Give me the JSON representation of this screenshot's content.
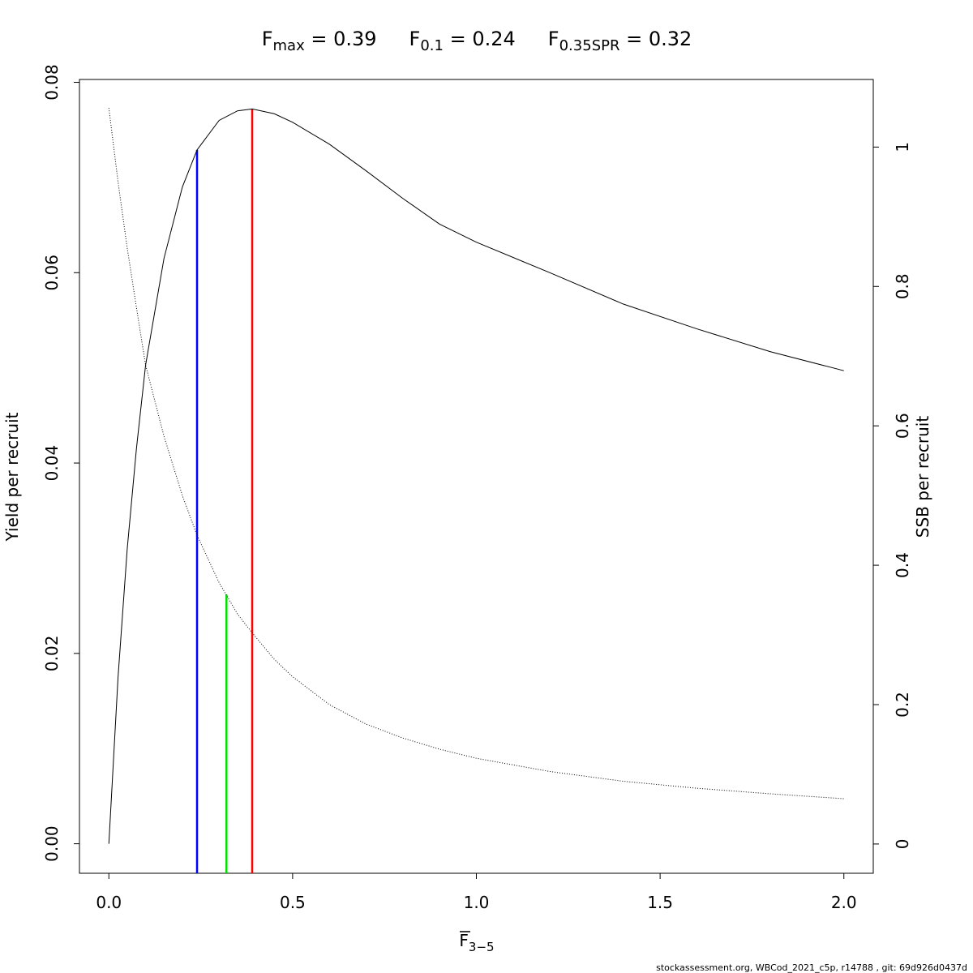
{
  "chart_data": {
    "type": "line",
    "title_parts": [
      {
        "main": "F",
        "sub": "max",
        "rest": " = 0.39"
      },
      {
        "main": "F",
        "sub": "0.1",
        "rest": " = 0.24"
      },
      {
        "main": "F",
        "sub": "0.35SPR",
        "rest": " = 0.32"
      }
    ],
    "x_label": {
      "main": "F",
      "sub": "3−5"
    },
    "y_label": "Yield per recruit",
    "y2_label": "SSB per recruit",
    "footer": "stockassessment.org, WBCod_2021_c5p, r14788 , git: 69d926d0437d",
    "x": [
      0,
      0.025,
      0.05,
      0.075,
      0.1,
      0.15,
      0.2,
      0.24,
      0.3,
      0.35,
      0.39,
      0.45,
      0.5,
      0.6,
      0.7,
      0.8,
      0.9,
      1.0,
      1.2,
      1.4,
      1.6,
      1.8,
      2.0
    ],
    "series": [
      {
        "color": "#000000",
        "style": "solid",
        "values": [
          0,
          0.0175,
          0.031,
          0.0415,
          0.0503,
          0.0615,
          0.069,
          0.0729,
          0.076,
          0.077,
          0.0772,
          0.0767,
          0.0758,
          0.0735,
          0.0707,
          0.0678,
          0.0651,
          0.0632,
          0.06,
          0.0567,
          0.0541,
          0.0517,
          0.0497
        ]
      },
      {
        "color": "#000000",
        "style": "dotted",
        "axis": "y2",
        "values": [
          1.056,
          0.95,
          0.855,
          0.77,
          0.687,
          0.585,
          0.5,
          0.443,
          0.375,
          0.33,
          0.303,
          0.265,
          0.24,
          0.2,
          0.172,
          0.152,
          0.136,
          0.123,
          0.104,
          0.09,
          0.08,
          0.072,
          0.065
        ]
      }
    ],
    "ref_lines": [
      {
        "x": 0.24,
        "y": 0.0729,
        "color": "#0000ff"
      },
      {
        "x": 0.32,
        "y": 0.358,
        "axis": "y2",
        "color": "#00e000"
      },
      {
        "x": 0.39,
        "y": 0.0772,
        "color": "#ff0000"
      }
    ],
    "xlim": [
      -0.08,
      2.08
    ],
    "ylim": [
      -0.0031,
      0.0803
    ],
    "y2lim": [
      -0.042,
      1.097
    ],
    "xticks": [
      {
        "value": 0,
        "label": "0.0"
      },
      {
        "value": 0.5,
        "label": "0.5"
      },
      {
        "value": 1,
        "label": "1.0"
      },
      {
        "value": 1.5,
        "label": "1.5"
      },
      {
        "value": 2,
        "label": "2.0"
      }
    ],
    "yticks": [
      {
        "value": 0,
        "label": "0.00"
      },
      {
        "value": 0.02,
        "label": "0.02"
      },
      {
        "value": 0.04,
        "label": "0.04"
      },
      {
        "value": 0.06,
        "label": "0.06"
      },
      {
        "value": 0.08,
        "label": "0.08"
      }
    ],
    "y2ticks": [
      0,
      0.2,
      0.4,
      0.6,
      0.8,
      1
    ]
  }
}
